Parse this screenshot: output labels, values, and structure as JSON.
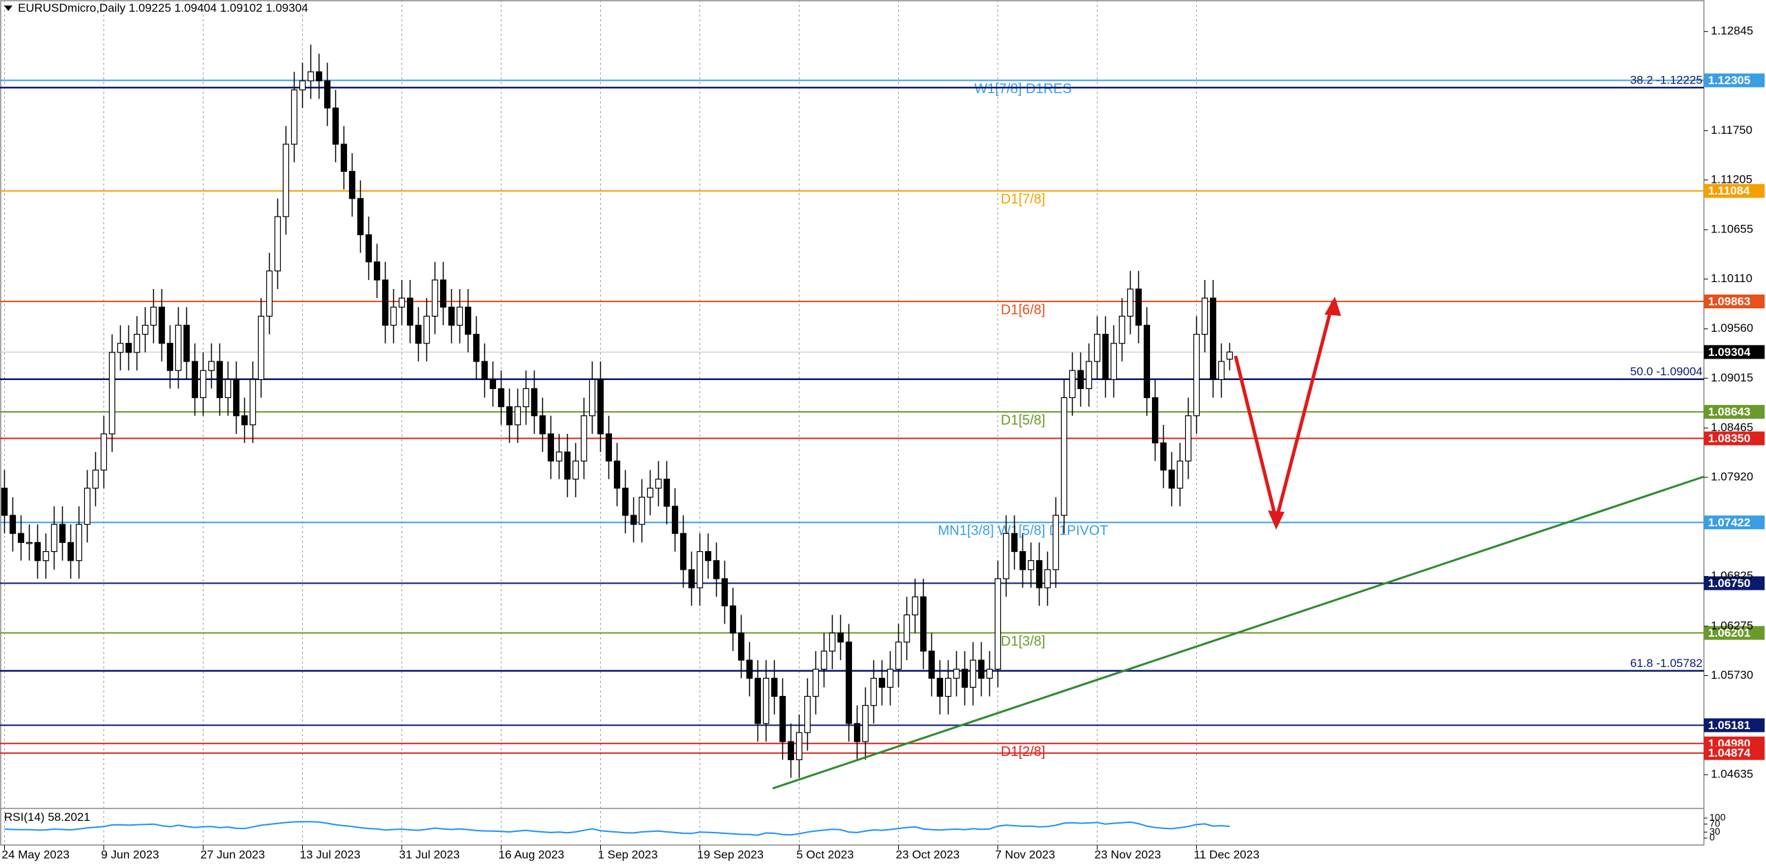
{
  "chart_data": {
    "type": "candlestick",
    "title": "EURUSDmicro,Daily",
    "header_values": [
      1.09225,
      1.09404,
      1.09102,
      1.09304
    ],
    "categories": [
      "24 May 2023",
      null,
      null,
      null,
      null,
      null,
      null,
      null,
      null,
      null,
      null,
      null,
      "9 Jun 2023",
      null,
      null,
      null,
      null,
      null,
      null,
      null,
      null,
      null,
      null,
      null,
      "27 Jun 2023",
      null,
      null,
      null,
      null,
      null,
      null,
      null,
      null,
      null,
      null,
      null,
      "13 Jul 2023",
      null,
      null,
      null,
      null,
      null,
      null,
      null,
      null,
      null,
      null,
      null,
      "31 Jul 2023",
      null,
      null,
      null,
      null,
      null,
      null,
      null,
      null,
      null,
      null,
      null,
      "16 Aug 2023",
      null,
      null,
      null,
      null,
      null,
      null,
      null,
      null,
      null,
      null,
      null,
      "1 Sep 2023",
      null,
      null,
      null,
      null,
      null,
      null,
      null,
      null,
      null,
      null,
      null,
      "19 Sep 2023",
      null,
      null,
      null,
      null,
      null,
      null,
      null,
      null,
      null,
      null,
      null,
      "5 Oct 2023",
      null,
      null,
      null,
      null,
      null,
      null,
      null,
      null,
      null,
      null,
      null,
      "23 Oct 2023",
      null,
      null,
      null,
      null,
      null,
      null,
      null,
      null,
      null,
      null,
      null,
      "7 Nov 2023",
      null,
      null,
      null,
      null,
      null,
      null,
      null,
      null,
      null,
      null,
      null,
      "23 Nov 2023",
      null,
      null,
      null,
      null,
      null,
      null,
      null,
      null,
      null,
      null,
      null,
      "11 Dec 2023",
      null,
      null,
      null,
      null
    ],
    "open": [
      1.078,
      1.075,
      1.073,
      1.072,
      1.072,
      1.07,
      1.071,
      1.074,
      1.072,
      1.07,
      1.074,
      1.078,
      1.08,
      1.084,
      1.093,
      1.094,
      1.093,
      1.095,
      1.096,
      1.098,
      1.094,
      1.091,
      1.096,
      1.092,
      1.088,
      1.091,
      1.092,
      1.088,
      1.09,
      1.086,
      1.085,
      1.09,
      1.097,
      1.102,
      1.108,
      1.116,
      1.122,
      1.123,
      1.124,
      1.123,
      1.12,
      1.116,
      1.113,
      1.11,
      1.106,
      1.103,
      1.101,
      1.096,
      1.098,
      1.099,
      1.096,
      1.094,
      1.097,
      1.101,
      1.098,
      1.096,
      1.098,
      1.095,
      1.092,
      1.09,
      1.089,
      1.087,
      1.085,
      1.087,
      1.089,
      1.086,
      1.084,
      1.081,
      1.082,
      1.079,
      1.081,
      1.086,
      1.09,
      1.084,
      1.081,
      1.078,
      1.075,
      1.074,
      1.077,
      1.078,
      1.079,
      1.076,
      1.073,
      1.069,
      1.067,
      1.071,
      1.07,
      1.068,
      1.065,
      1.062,
      1.059,
      1.057,
      1.052,
      1.057,
      1.055,
      1.05,
      1.048,
      1.051,
      1.055,
      1.058,
      1.06,
      1.062,
      1.061,
      1.052,
      1.05,
      1.054,
      1.057,
      1.056,
      1.058,
      1.061,
      1.064,
      1.066,
      1.06,
      1.057,
      1.055,
      1.057,
      1.058,
      1.056,
      1.059,
      1.057,
      1.058,
      1.068,
      1.073,
      1.071,
      1.069,
      1.07,
      1.067,
      1.069,
      1.075,
      1.088,
      1.091,
      1.089,
      1.092,
      1.095,
      1.09,
      1.094,
      1.097,
      1.1,
      1.096,
      1.088,
      1.083,
      1.08,
      1.078,
      1.081,
      1.086,
      1.095,
      1.099,
      1.09,
      1.09225
    ],
    "high": [
      1.08,
      1.077,
      1.075,
      1.074,
      1.074,
      1.073,
      1.076,
      1.076,
      1.074,
      1.076,
      1.08,
      1.082,
      1.086,
      1.095,
      1.096,
      1.096,
      1.097,
      1.098,
      1.1,
      1.1,
      1.096,
      1.098,
      1.098,
      1.094,
      1.093,
      1.094,
      1.094,
      1.092,
      1.092,
      1.088,
      1.092,
      1.099,
      1.104,
      1.11,
      1.118,
      1.124,
      1.125,
      1.127,
      1.126,
      1.125,
      1.122,
      1.118,
      1.115,
      1.112,
      1.108,
      1.105,
      1.103,
      1.1,
      1.101,
      1.101,
      1.098,
      1.099,
      1.103,
      1.103,
      1.1,
      1.1,
      1.1,
      1.097,
      1.094,
      1.092,
      1.091,
      1.089,
      1.089,
      1.091,
      1.091,
      1.088,
      1.086,
      1.084,
      1.084,
      1.083,
      1.088,
      1.092,
      1.092,
      1.086,
      1.083,
      1.08,
      1.077,
      1.079,
      1.08,
      1.081,
      1.081,
      1.078,
      1.075,
      1.071,
      1.073,
      1.073,
      1.072,
      1.07,
      1.067,
      1.064,
      1.061,
      1.059,
      1.059,
      1.059,
      1.057,
      1.052,
      1.053,
      1.057,
      1.06,
      1.062,
      1.064,
      1.064,
      1.063,
      1.054,
      1.056,
      1.059,
      1.059,
      1.06,
      1.063,
      1.066,
      1.068,
      1.068,
      1.062,
      1.059,
      1.059,
      1.06,
      1.06,
      1.061,
      1.061,
      1.06,
      1.07,
      1.075,
      1.075,
      1.073,
      1.072,
      1.072,
      1.071,
      1.077,
      1.09,
      1.093,
      1.093,
      1.094,
      1.097,
      1.097,
      1.096,
      1.099,
      1.102,
      1.102,
      1.098,
      1.09,
      1.085,
      1.082,
      1.083,
      1.088,
      1.097,
      1.101,
      1.101,
      1.094,
      1.09404
    ],
    "low": [
      1.073,
      1.071,
      1.07,
      1.07,
      1.068,
      1.068,
      1.069,
      1.07,
      1.068,
      1.068,
      1.072,
      1.076,
      1.078,
      1.082,
      1.091,
      1.091,
      1.091,
      1.093,
      1.094,
      1.092,
      1.089,
      1.089,
      1.09,
      1.086,
      1.086,
      1.089,
      1.086,
      1.086,
      1.084,
      1.083,
      1.083,
      1.088,
      1.095,
      1.1,
      1.106,
      1.114,
      1.12,
      1.121,
      1.121,
      1.118,
      1.114,
      1.111,
      1.108,
      1.104,
      1.101,
      1.099,
      1.094,
      1.094,
      1.096,
      1.094,
      1.092,
      1.092,
      1.095,
      1.096,
      1.094,
      1.094,
      1.093,
      1.09,
      1.088,
      1.087,
      1.085,
      1.083,
      1.083,
      1.085,
      1.084,
      1.082,
      1.079,
      1.079,
      1.077,
      1.077,
      1.079,
      1.084,
      1.082,
      1.079,
      1.076,
      1.073,
      1.072,
      1.072,
      1.075,
      1.076,
      1.074,
      1.071,
      1.067,
      1.065,
      1.065,
      1.068,
      1.066,
      1.063,
      1.06,
      1.057,
      1.055,
      1.05,
      1.05,
      1.053,
      1.048,
      1.046,
      1.046,
      1.049,
      1.053,
      1.056,
      1.058,
      1.059,
      1.05,
      1.048,
      1.048,
      1.052,
      1.054,
      1.054,
      1.056,
      1.059,
      1.062,
      1.058,
      1.055,
      1.053,
      1.053,
      1.055,
      1.054,
      1.054,
      1.055,
      1.055,
      1.056,
      1.066,
      1.069,
      1.067,
      1.067,
      1.065,
      1.065,
      1.067,
      1.073,
      1.086,
      1.087,
      1.087,
      1.09,
      1.088,
      1.088,
      1.092,
      1.095,
      1.094,
      1.086,
      1.081,
      1.078,
      1.076,
      1.076,
      1.079,
      1.084,
      1.093,
      1.088,
      1.088,
      1.09102
    ],
    "close": [
      1.075,
      1.073,
      1.072,
      1.072,
      1.07,
      1.071,
      1.074,
      1.072,
      1.07,
      1.074,
      1.078,
      1.08,
      1.084,
      1.093,
      1.094,
      1.093,
      1.095,
      1.096,
      1.098,
      1.094,
      1.091,
      1.096,
      1.092,
      1.088,
      1.091,
      1.092,
      1.088,
      1.09,
      1.086,
      1.085,
      1.09,
      1.097,
      1.102,
      1.108,
      1.116,
      1.122,
      1.123,
      1.124,
      1.123,
      1.12,
      1.116,
      1.113,
      1.11,
      1.106,
      1.103,
      1.101,
      1.096,
      1.098,
      1.099,
      1.096,
      1.094,
      1.097,
      1.101,
      1.098,
      1.096,
      1.098,
      1.095,
      1.092,
      1.09,
      1.089,
      1.087,
      1.085,
      1.087,
      1.089,
      1.086,
      1.084,
      1.081,
      1.082,
      1.079,
      1.081,
      1.086,
      1.09,
      1.084,
      1.081,
      1.078,
      1.075,
      1.074,
      1.077,
      1.078,
      1.079,
      1.076,
      1.073,
      1.069,
      1.067,
      1.071,
      1.07,
      1.068,
      1.065,
      1.062,
      1.059,
      1.057,
      1.052,
      1.057,
      1.055,
      1.05,
      1.048,
      1.051,
      1.055,
      1.058,
      1.06,
      1.062,
      1.061,
      1.052,
      1.05,
      1.054,
      1.057,
      1.056,
      1.058,
      1.061,
      1.064,
      1.066,
      1.06,
      1.057,
      1.055,
      1.057,
      1.058,
      1.056,
      1.059,
      1.057,
      1.058,
      1.068,
      1.073,
      1.071,
      1.069,
      1.07,
      1.067,
      1.069,
      1.075,
      1.088,
      1.091,
      1.089,
      1.092,
      1.095,
      1.09,
      1.094,
      1.097,
      1.1,
      1.096,
      1.088,
      1.083,
      1.08,
      1.078,
      1.081,
      1.086,
      1.095,
      1.099,
      1.09,
      1.092,
      1.09304
    ],
    "up_color": "#ffffff",
    "down_color": "#000000",
    "ylim": [
      1.04262,
      1.13193
    ],
    "yticks": [
      1.12845,
      {
        "value": 1.1175,
        "label": "1.11750"
      },
      1.11205,
      1.10655,
      {
        "value": 1.1011,
        "label": "1.10110"
      },
      {
        "value": 1.0956,
        "label": "1.09560"
      },
      1.09015,
      1.08465,
      {
        "value": 1.0792,
        "label": "1.07920"
      },
      1.06825,
      1.06275,
      {
        "value": 1.0573,
        "label": "1.05730"
      },
      1.04635
    ],
    "grid": true,
    "levels": [
      {
        "value": 1.12305,
        "tag": "1.12305",
        "text": "W1[7/8] D1RES",
        "color": "#3a9ee4"
      },
      {
        "value": 1.11084,
        "tag": "1.11084",
        "text": "D1[7/8]",
        "color": "#f5a000"
      },
      {
        "value": 1.09863,
        "tag": "1.09863",
        "text": "D1[6/8]",
        "color": "#e8501c"
      },
      {
        "value": 1.08643,
        "tag": "1.08643",
        "text": "D1[5/8]",
        "color": "#6b9a2b"
      },
      {
        "value": 1.0835,
        "tag": "1.08350",
        "color": "#e0201b"
      },
      {
        "value": 1.07422,
        "tag": "1.07422",
        "text": "MN1[3/8] W1[5/8] D1PIVOT",
        "color": "#3a9ee4"
      },
      {
        "value": 1.0675,
        "tag": "1.06750",
        "color": "#0a1a6e"
      },
      {
        "value": 1.06201,
        "tag": "1.06201",
        "text": "D1[3/8]",
        "color": "#6b9a2b"
      },
      {
        "value": 1.05181,
        "tag": "1.05181",
        "color": "#0a1a6e"
      },
      {
        "value": 1.0498,
        "tag": "1.04980",
        "text": "D1[2/8]",
        "color": "#e0201b"
      },
      {
        "value": 1.04874,
        "tag": "1.04874",
        "color": "#e0201b"
      }
    ],
    "fib": [
      {
        "value": 1.12225,
        "label": "38.2 -1.12225"
      },
      {
        "value": 1.09004,
        "label": "50.0 -1.09004"
      },
      {
        "value": 1.05782,
        "label": "61.8 -1.05782"
      }
    ],
    "fib_color": "#0a1a6e",
    "rsi": {
      "name": "RSI(14)",
      "color": "#1e90ff",
      "ylim": [
        0,
        100
      ],
      "yticks": [
        100,
        70,
        30,
        0
      ],
      "values": [
        45,
        43,
        42,
        42,
        40,
        41,
        45,
        43,
        41,
        46,
        51,
        54,
        58,
        66,
        67,
        65,
        67,
        68,
        70,
        62,
        57,
        64,
        58,
        53,
        57,
        58,
        52,
        55,
        49,
        48,
        56,
        64,
        69,
        73,
        78,
        81,
        82,
        82,
        80,
        74,
        67,
        62,
        58,
        52,
        48,
        46,
        40,
        43,
        45,
        41,
        39,
        44,
        50,
        46,
        43,
        46,
        42,
        38,
        36,
        35,
        33,
        31,
        35,
        39,
        34,
        31,
        28,
        30,
        27,
        31,
        39,
        46,
        37,
        33,
        30,
        27,
        26,
        31,
        33,
        35,
        31,
        28,
        24,
        23,
        30,
        29,
        27,
        24,
        21,
        19,
        18,
        15,
        26,
        24,
        18,
        16,
        22,
        30,
        36,
        40,
        44,
        42,
        30,
        28,
        35,
        41,
        39,
        43,
        48,
        53,
        56,
        46,
        42,
        40,
        43,
        45,
        42,
        47,
        44,
        46,
        60,
        65,
        62,
        59,
        60,
        56,
        58,
        64,
        75,
        77,
        74,
        76,
        78,
        70,
        74,
        77,
        80,
        72,
        60,
        53,
        49,
        47,
        52,
        58,
        68,
        71,
        60,
        62,
        58.2021
      ]
    }
  }
}
